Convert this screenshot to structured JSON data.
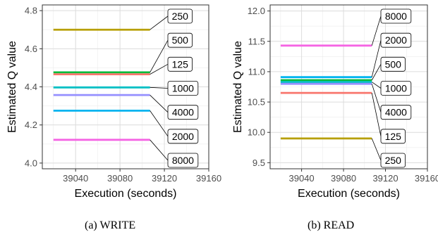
{
  "chart_data": [
    {
      "type": "line",
      "caption": "(a)  WRITE",
      "xlabel": "Execution (seconds)",
      "ylabel": "Estimated Q value",
      "xlim": [
        39010,
        39160
      ],
      "ylim": [
        3.97,
        4.83
      ],
      "xticks": [
        39040,
        39080,
        39120,
        39160
      ],
      "yticks": [
        4.0,
        4.2,
        4.4,
        4.6,
        4.8
      ],
      "ytick_labels": [
        "4.0",
        "4.2",
        "4.4",
        "4.6",
        "4.8"
      ],
      "grid": true,
      "x_range_of_lines": [
        39020,
        39107
      ],
      "series": [
        {
          "name": "250",
          "y": 4.7,
          "color": "#b79f00"
        },
        {
          "name": "500",
          "y": 4.476,
          "color": "#00ba38"
        },
        {
          "name": "125",
          "y": 4.466,
          "color": "#f8766d"
        },
        {
          "name": "1000",
          "y": 4.397,
          "color": "#00bfc4"
        },
        {
          "name": "4000",
          "y": 4.357,
          "color": "#9590ff"
        },
        {
          "name": "2000",
          "y": 4.275,
          "color": "#00b4ef"
        },
        {
          "name": "8000",
          "y": 4.122,
          "color": "#f564e3"
        }
      ]
    },
    {
      "type": "line",
      "caption": "(b)  READ",
      "xlabel": "Execution (seconds)",
      "ylabel": "Estimated Q value",
      "xlim": [
        39010,
        39160
      ],
      "ylim": [
        9.4,
        12.1
      ],
      "xticks": [
        39040,
        39080,
        39120,
        39160
      ],
      "yticks": [
        9.5,
        10.0,
        10.5,
        11.0,
        11.5,
        12.0
      ],
      "ytick_labels": [
        "9.5",
        "10.0",
        "10.5",
        "11.0",
        "11.5",
        "12.0"
      ],
      "grid": true,
      "x_range_of_lines": [
        39020,
        39107
      ],
      "series": [
        {
          "name": "8000",
          "y": 11.43,
          "color": "#f564e3"
        },
        {
          "name": "2000",
          "y": 10.91,
          "color": "#00b4ef"
        },
        {
          "name": "500",
          "y": 10.86,
          "color": "#00ba38"
        },
        {
          "name": "1000",
          "y": 10.83,
          "color": "#00bfc4"
        },
        {
          "name": "4000",
          "y": 10.8,
          "color": "#9590ff"
        },
        {
          "name": "125",
          "y": 10.65,
          "color": "#f8766d"
        },
        {
          "name": "250",
          "y": 9.9,
          "color": "#b79f00"
        }
      ]
    }
  ]
}
